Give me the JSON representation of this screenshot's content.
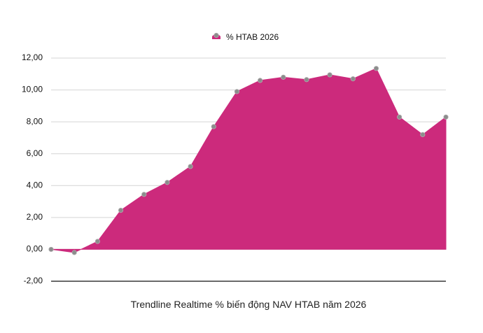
{
  "chart_data": {
    "type": "area",
    "x": [
      1,
      2,
      3,
      4,
      5,
      6,
      7,
      8,
      9,
      10,
      11,
      12,
      13,
      14,
      15,
      16,
      17,
      18
    ],
    "series": [
      {
        "name": "% HTAB 2026",
        "values": [
          0.0,
          -0.2,
          0.5,
          2.45,
          3.45,
          4.2,
          5.2,
          7.7,
          9.9,
          10.6,
          10.8,
          10.65,
          10.95,
          10.7,
          11.35,
          8.3,
          7.2,
          8.3
        ]
      }
    ],
    "title": "",
    "xlabel": "Trendline Realtime % biến động NAV HTAB năm 2026",
    "ylabel": "",
    "ylim": [
      -2,
      12
    ],
    "yticks": [
      "-2,00",
      "0,00",
      "2,00",
      "4,00",
      "6,00",
      "8,00",
      "10,00",
      "12,00"
    ],
    "grid": true,
    "legend_position": "top-center",
    "colors": {
      "area_fill": "#cc2a7c",
      "marker": "#8c8c8c",
      "marker_stroke": "#b0b0b0",
      "gridline": "#d4d4d4"
    }
  }
}
